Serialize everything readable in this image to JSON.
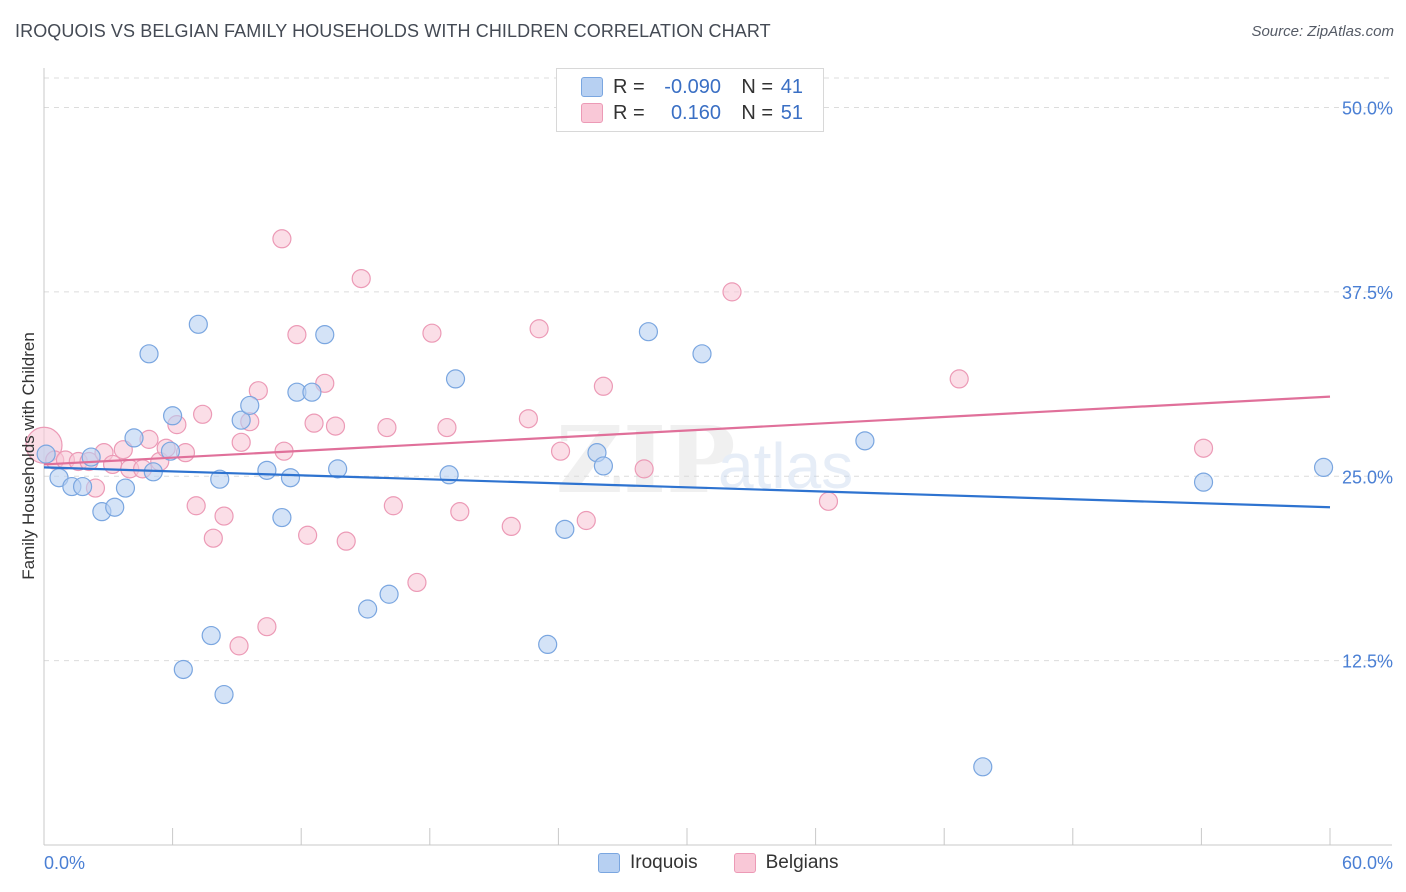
{
  "title": "IROQUOIS VS BELGIAN FAMILY HOUSEHOLDS WITH CHILDREN CORRELATION CHART",
  "source": "Source: ZipAtlas.com",
  "watermark": {
    "zip": "ZIP",
    "atlas": "atlas"
  },
  "legend": {
    "iroquois": {
      "r_label": "R =",
      "r_value": "-0.090",
      "n_label": "N =",
      "n_value": "41"
    },
    "belgians": {
      "r_label": "R =",
      "r_value": "0.160",
      "n_label": "N =",
      "n_value": "51"
    }
  },
  "colors": {
    "iroquois_fill": "#b7d0f2",
    "iroquois_stroke": "#7aa6e0",
    "iroquois_line": "#2e73d0",
    "belgians_fill": "#f9c8d7",
    "belgians_stroke": "#ec9ab6",
    "belgians_line": "#e0709a",
    "grid": "#dcdcdc",
    "tick_label": "#4a7fd4"
  },
  "chart_data": {
    "type": "scatter",
    "title": "IROQUOIS VS BELGIAN FAMILY HOUSEHOLDS WITH CHILDREN CORRELATION CHART",
    "xlabel": "",
    "ylabel": "Family Households with Children",
    "xlim": [
      0,
      60
    ],
    "ylim": [
      0,
      52
    ],
    "x_tick_labels": [
      "0.0%",
      "60.0%"
    ],
    "y_ticks": [
      12.5,
      25.0,
      37.5,
      50.0
    ],
    "y_tick_labels": [
      "12.5%",
      "25.0%",
      "37.5%",
      "50.0%"
    ],
    "grid": true,
    "legend_position": "top-center",
    "series": [
      {
        "name": "Iroquois",
        "regression": {
          "x": [
            0,
            60
          ],
          "y": [
            25.6,
            22.9
          ]
        },
        "points": [
          [
            0.1,
            26.5
          ],
          [
            0.7,
            24.9
          ],
          [
            1.3,
            24.3
          ],
          [
            1.8,
            24.3
          ],
          [
            2.2,
            26.3
          ],
          [
            2.7,
            22.6
          ],
          [
            3.3,
            22.9
          ],
          [
            3.8,
            24.2
          ],
          [
            4.2,
            27.6
          ],
          [
            4.9,
            33.3
          ],
          [
            5.1,
            25.3
          ],
          [
            5.9,
            26.7
          ],
          [
            6.0,
            29.1
          ],
          [
            6.5,
            11.9
          ],
          [
            7.2,
            35.3
          ],
          [
            7.8,
            14.2
          ],
          [
            8.2,
            24.8
          ],
          [
            8.4,
            10.2
          ],
          [
            9.2,
            28.8
          ],
          [
            9.6,
            29.8
          ],
          [
            10.4,
            25.4
          ],
          [
            11.1,
            22.2
          ],
          [
            11.5,
            24.9
          ],
          [
            11.8,
            30.7
          ],
          [
            12.5,
            30.7
          ],
          [
            13.1,
            34.6
          ],
          [
            13.7,
            25.5
          ],
          [
            15.1,
            16.0
          ],
          [
            16.1,
            17.0
          ],
          [
            18.9,
            25.1
          ],
          [
            19.2,
            31.6
          ],
          [
            23.5,
            13.6
          ],
          [
            24.3,
            21.4
          ],
          [
            25.8,
            26.6
          ],
          [
            26.1,
            25.7
          ],
          [
            28.2,
            34.8
          ],
          [
            30.7,
            33.3
          ],
          [
            38.3,
            27.4
          ],
          [
            43.8,
            5.3
          ],
          [
            54.1,
            24.6
          ],
          [
            59.7,
            25.6
          ]
        ]
      },
      {
        "name": "Belgians",
        "regression": {
          "x": [
            0,
            60
          ],
          "y": [
            25.8,
            30.4
          ]
        },
        "points": [
          [
            0.0,
            27.1
          ],
          [
            0.5,
            26.1
          ],
          [
            1.0,
            26.1
          ],
          [
            1.6,
            26.0
          ],
          [
            2.1,
            26.0
          ],
          [
            2.4,
            24.2
          ],
          [
            2.8,
            26.6
          ],
          [
            3.2,
            25.8
          ],
          [
            3.7,
            26.8
          ],
          [
            4.0,
            25.5
          ],
          [
            4.6,
            25.5
          ],
          [
            4.9,
            27.5
          ],
          [
            5.4,
            26.0
          ],
          [
            5.7,
            26.9
          ],
          [
            6.2,
            28.5
          ],
          [
            6.6,
            26.6
          ],
          [
            7.1,
            23.0
          ],
          [
            7.4,
            29.2
          ],
          [
            7.9,
            20.8
          ],
          [
            8.4,
            22.3
          ],
          [
            9.1,
            13.5
          ],
          [
            9.2,
            27.3
          ],
          [
            9.6,
            28.7
          ],
          [
            10.0,
            30.8
          ],
          [
            10.4,
            14.8
          ],
          [
            11.1,
            41.1
          ],
          [
            11.2,
            26.7
          ],
          [
            11.8,
            34.6
          ],
          [
            12.3,
            21.0
          ],
          [
            12.6,
            28.6
          ],
          [
            13.1,
            31.3
          ],
          [
            13.6,
            28.4
          ],
          [
            14.1,
            20.6
          ],
          [
            14.8,
            38.4
          ],
          [
            16.0,
            28.3
          ],
          [
            16.3,
            23.0
          ],
          [
            17.4,
            17.8
          ],
          [
            18.1,
            34.7
          ],
          [
            18.8,
            28.3
          ],
          [
            19.4,
            22.6
          ],
          [
            21.8,
            21.6
          ],
          [
            22.6,
            28.9
          ],
          [
            23.1,
            35.0
          ],
          [
            24.1,
            26.7
          ],
          [
            25.3,
            22.0
          ],
          [
            26.1,
            31.1
          ],
          [
            28.0,
            25.5
          ],
          [
            32.1,
            37.5
          ],
          [
            36.6,
            23.3
          ],
          [
            42.7,
            31.6
          ],
          [
            54.1,
            26.9
          ]
        ]
      }
    ]
  }
}
